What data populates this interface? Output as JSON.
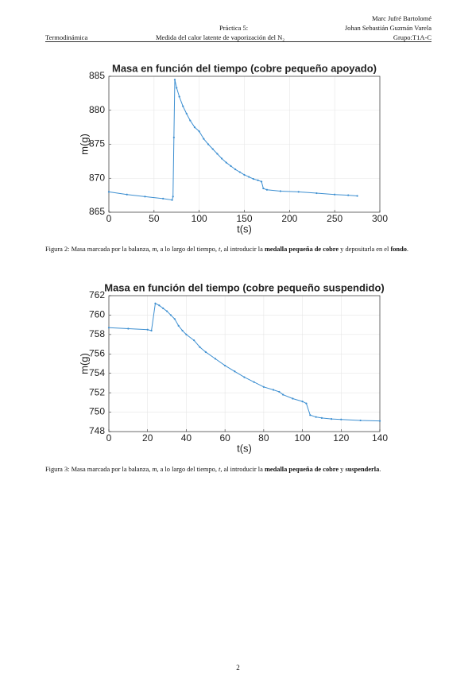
{
  "header": {
    "author1": "Marc Jufré Bartolomé",
    "practice": "Práctica 5:",
    "author2": "Johan Sebastián Guzmán Varela",
    "subject": "Termodinámica",
    "topic": "Medida del calor latente de vaporización del N₂",
    "group": "Grupo:T1A-C"
  },
  "chart_data": [
    {
      "type": "line",
      "title": "Masa en función del tiempo (cobre pequeño apoyado)",
      "x_label": "t(s)",
      "y_label": "m(g)",
      "x": [
        0,
        20,
        40,
        60,
        70,
        71,
        72,
        73,
        75,
        78,
        82,
        86,
        90,
        95,
        100,
        105,
        110,
        115,
        120,
        125,
        130,
        135,
        140,
        145,
        150,
        155,
        160,
        165,
        169,
        171,
        175,
        190,
        210,
        230,
        250,
        265,
        275
      ],
      "series": [
        {
          "color": "#3d8fd1",
          "values": [
            868.0,
            867.6,
            867.3,
            867.0,
            866.8,
            867.3,
            876.0,
            884.5,
            883.3,
            882.0,
            880.6,
            879.5,
            878.5,
            877.5,
            876.9,
            875.8,
            875.0,
            874.3,
            873.6,
            872.9,
            872.3,
            871.8,
            871.3,
            870.9,
            870.5,
            870.2,
            869.9,
            869.7,
            869.5,
            868.5,
            868.3,
            868.1,
            868.0,
            867.8,
            867.6,
            867.5,
            867.4
          ]
        }
      ],
      "xlim": [
        0,
        300
      ],
      "xticks": [
        0,
        50,
        100,
        150,
        200,
        250,
        300
      ],
      "ylim": [
        865,
        885
      ],
      "yticks": [
        865,
        870,
        875,
        880,
        885
      ],
      "grid": true
    },
    {
      "type": "line",
      "title": "Masa en función del tiempo (cobre pequeño suspendido)",
      "x_label": "t(s)",
      "y_label": "m(g)",
      "x": [
        0,
        10,
        20,
        22,
        24,
        26,
        28,
        30,
        32,
        34,
        36,
        38,
        40,
        44,
        47,
        50,
        55,
        60,
        65,
        70,
        75,
        80,
        85,
        88,
        90,
        95,
        100,
        102,
        104,
        107,
        110,
        115,
        120,
        130,
        140
      ],
      "series": [
        {
          "color": "#3d8fd1",
          "values": [
            758.7,
            758.6,
            758.5,
            758.4,
            761.2,
            761.0,
            760.7,
            760.4,
            760.0,
            759.6,
            758.9,
            758.4,
            758.0,
            757.4,
            756.7,
            756.2,
            755.5,
            754.8,
            754.2,
            753.6,
            753.1,
            752.6,
            752.3,
            752.1,
            751.8,
            751.4,
            751.1,
            750.9,
            749.7,
            749.5,
            749.4,
            749.3,
            749.25,
            749.15,
            749.1
          ]
        }
      ],
      "xlim": [
        0,
        140
      ],
      "xticks": [
        0,
        20,
        40,
        60,
        80,
        100,
        120,
        140
      ],
      "ylim": [
        748,
        762
      ],
      "yticks": [
        748,
        750,
        752,
        754,
        756,
        758,
        760,
        762
      ],
      "grid": true
    }
  ],
  "captions": [
    {
      "segments": [
        {
          "text": "Figura 2: Masa marcada por la balanza, "
        },
        {
          "text": "m",
          "italic": true
        },
        {
          "text": ", a lo largo del tiempo, "
        },
        {
          "text": "t",
          "italic": true
        },
        {
          "text": ", al introducir la "
        },
        {
          "text": "medalla pequeña de cobre",
          "bold": true
        },
        {
          "text": " y depositarla en el "
        },
        {
          "text": "fondo",
          "bold": true
        },
        {
          "text": "."
        }
      ]
    },
    {
      "segments": [
        {
          "text": "Figura 3: Masa marcada por la balanza, "
        },
        {
          "text": "m",
          "italic": true
        },
        {
          "text": ", a lo largo del tiempo, "
        },
        {
          "text": "t",
          "italic": true
        },
        {
          "text": ", al introducir la "
        },
        {
          "text": "medalla pequeña de cobre",
          "bold": true
        },
        {
          "text": " y "
        },
        {
          "text": "suspenderla",
          "bold": true
        },
        {
          "text": "."
        }
      ]
    }
  ],
  "page_number": "2"
}
